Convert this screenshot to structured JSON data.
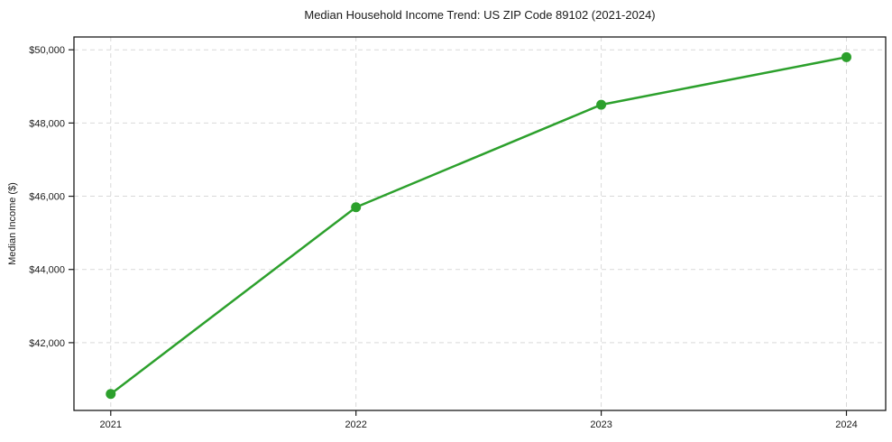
{
  "chart_data": {
    "type": "line",
    "title": "Median Household Income Trend: US ZIP Code 89102 (2021-2024)",
    "xlabel": "",
    "ylabel": "Median Income ($)",
    "x": [
      2021,
      2022,
      2023,
      2024
    ],
    "series": [
      {
        "name": "Median Household Income",
        "values": [
          40600,
          45700,
          48500,
          49800
        ]
      }
    ],
    "x_tick_labels": [
      "2021",
      "2022",
      "2023",
      "2024"
    ],
    "y_ticks": [
      42000,
      44000,
      46000,
      48000,
      50000
    ],
    "y_tick_labels": [
      "$42,000",
      "$44,000",
      "$46,000",
      "$48,000",
      "$50,000"
    ],
    "xlim": [
      2020.85,
      2024.16
    ],
    "ylim": [
      40150,
      50350
    ],
    "grid": true,
    "grid_style": "dashed",
    "legend": "none",
    "marker": "circle"
  },
  "colors": {
    "line": "#2ca02c",
    "marker": "#2ca02c",
    "grid": "#d9d9d9",
    "axis": "#1a1a1a",
    "text": "#1a1a1a",
    "background": "#ffffff"
  }
}
